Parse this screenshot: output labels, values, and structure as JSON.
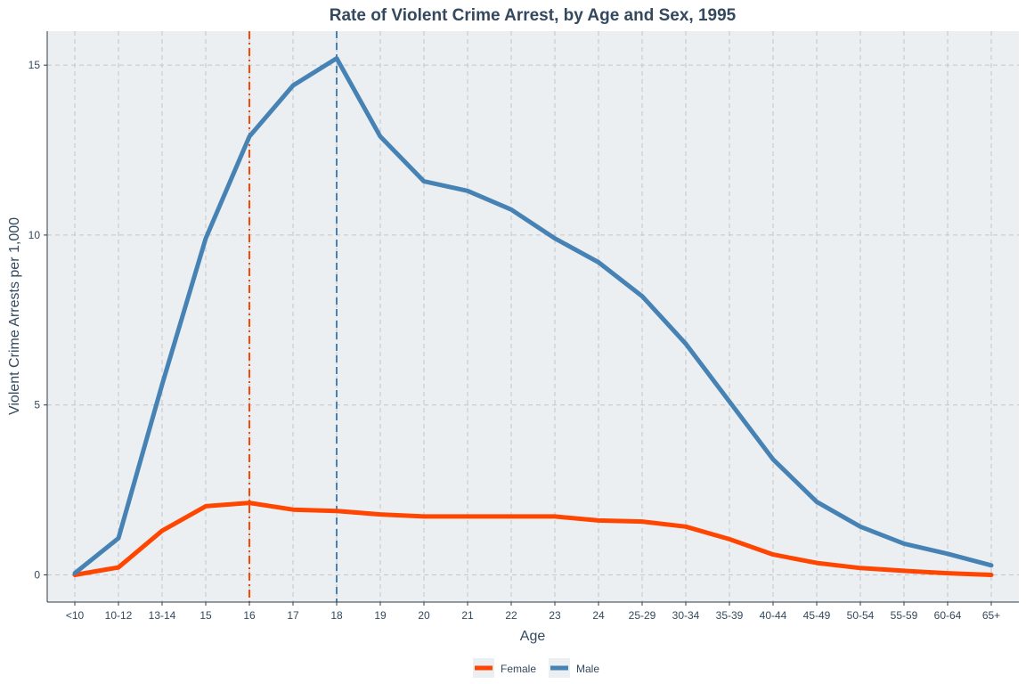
{
  "chart_data": {
    "type": "line",
    "title": "Rate of Violent Crime Arrest, by Age and Sex, 1995",
    "xlabel": "Age",
    "ylabel": "Violent Crime Arrests per 1,000",
    "categories": [
      "<10",
      "10-12",
      "13-14",
      "15",
      "16",
      "17",
      "18",
      "19",
      "20",
      "21",
      "22",
      "23",
      "24",
      "25-29",
      "30-34",
      "35-39",
      "40-44",
      "45-49",
      "50-54",
      "55-59",
      "60-64",
      "65+"
    ],
    "ylim": [
      -0.8,
      16.0
    ],
    "yticks": [
      0,
      5,
      10,
      15
    ],
    "grid": true,
    "legend_position": "bottom",
    "series": [
      {
        "name": "Female",
        "color": "#ff4500",
        "values": [
          0.0,
          0.22,
          1.3,
          2.02,
          2.12,
          1.92,
          1.88,
          1.78,
          1.72,
          1.72,
          1.72,
          1.72,
          1.6,
          1.57,
          1.42,
          1.05,
          0.6,
          0.35,
          0.2,
          0.12,
          0.05,
          0.0
        ]
      },
      {
        "name": "Male",
        "color": "#4682b4",
        "values": [
          0.05,
          1.08,
          5.6,
          9.9,
          12.9,
          14.4,
          15.2,
          12.9,
          11.58,
          11.3,
          10.75,
          9.9,
          9.2,
          8.2,
          6.8,
          5.1,
          3.4,
          2.15,
          1.42,
          0.92,
          0.62,
          0.28
        ]
      }
    ],
    "reference_lines": [
      {
        "category": "16",
        "color": "#ff4500",
        "style": "dashdot"
      },
      {
        "category": "18",
        "color": "#4682b4",
        "style": "dashed"
      }
    ]
  }
}
